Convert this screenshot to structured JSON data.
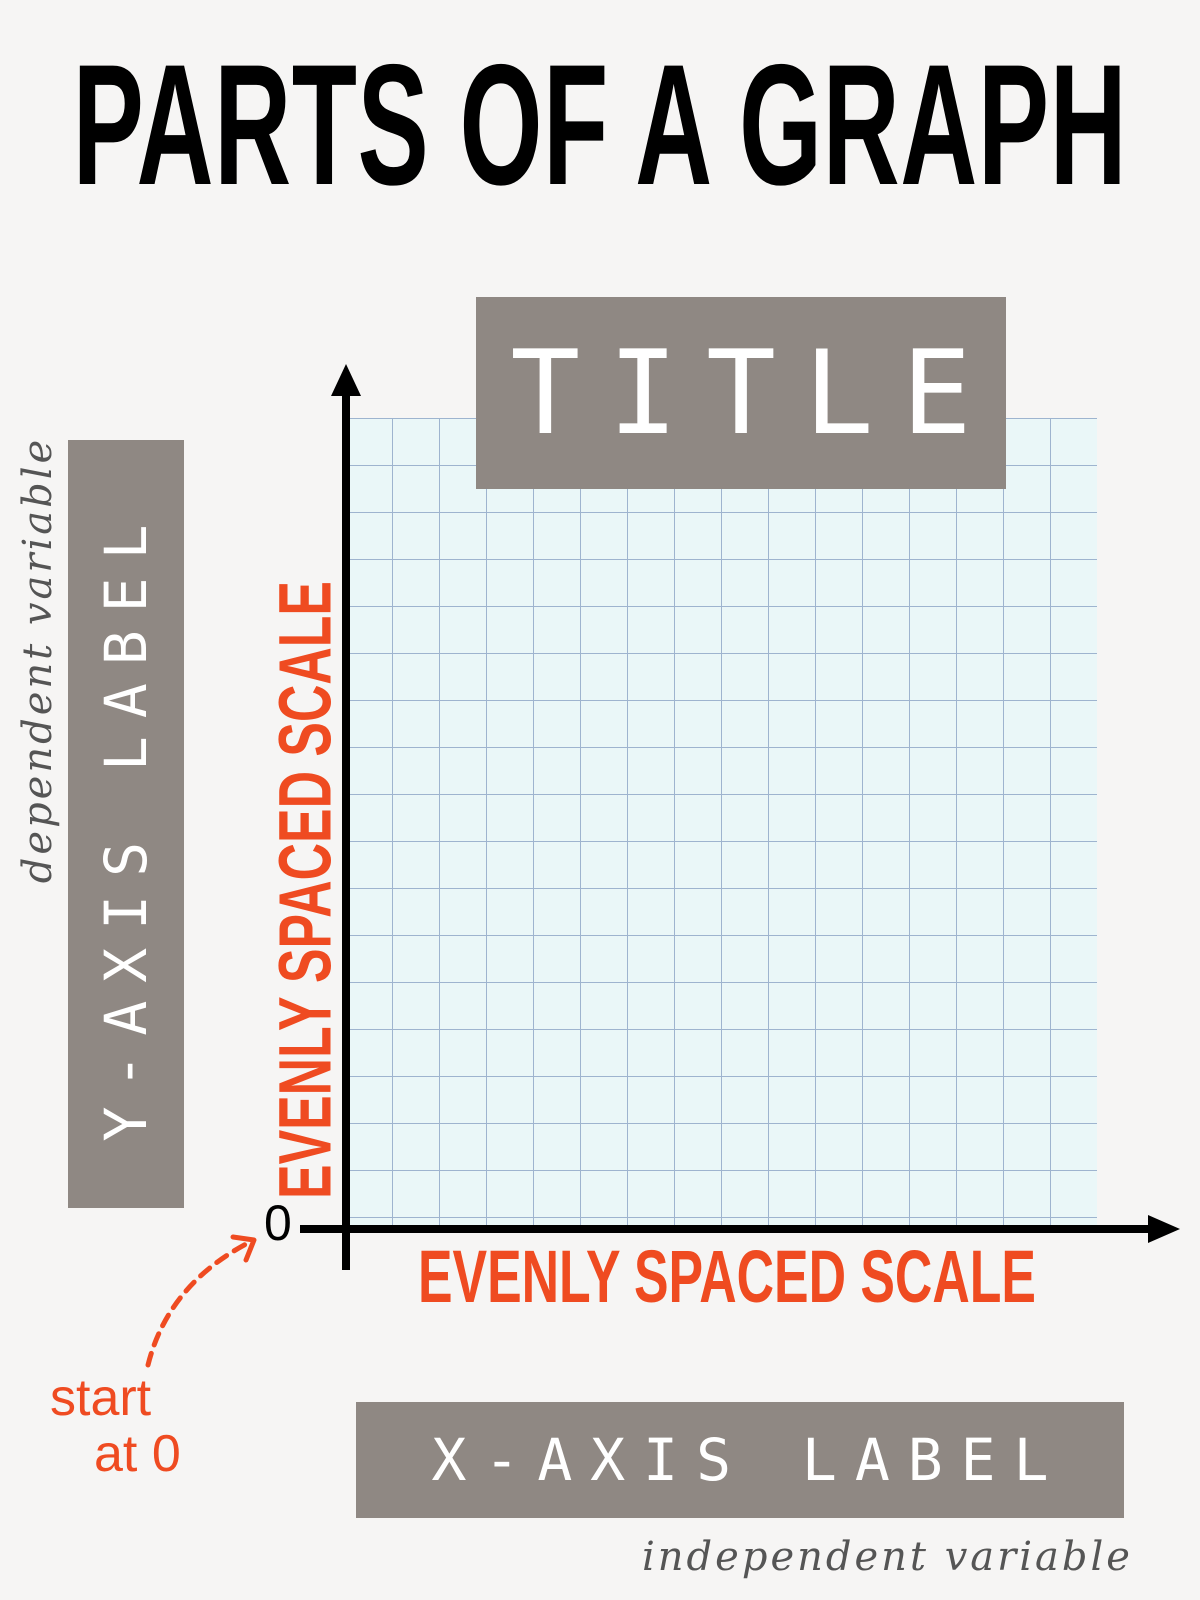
{
  "poster": {
    "heading": "PARTS OF A GRAPH",
    "title_box": "TITLE",
    "y_axis_label": "Y-AXIS LABEL",
    "x_axis_label": "X-AXIS LABEL",
    "y_scale_text": "EVENLY SPACED SCALE",
    "x_scale_text": "EVENLY SPACED SCALE",
    "origin_value": "0",
    "dependent_note": "dependent variable",
    "independent_note": "independent variable",
    "start_note_line1": "start",
    "start_note_line2": "at 0"
  },
  "colors": {
    "background": "#f6f5f4",
    "label_box": "#8f8883",
    "accent": "#ef4b21",
    "grid_fill": "#eaf7f8",
    "grid_line": "#9eb4cf"
  }
}
